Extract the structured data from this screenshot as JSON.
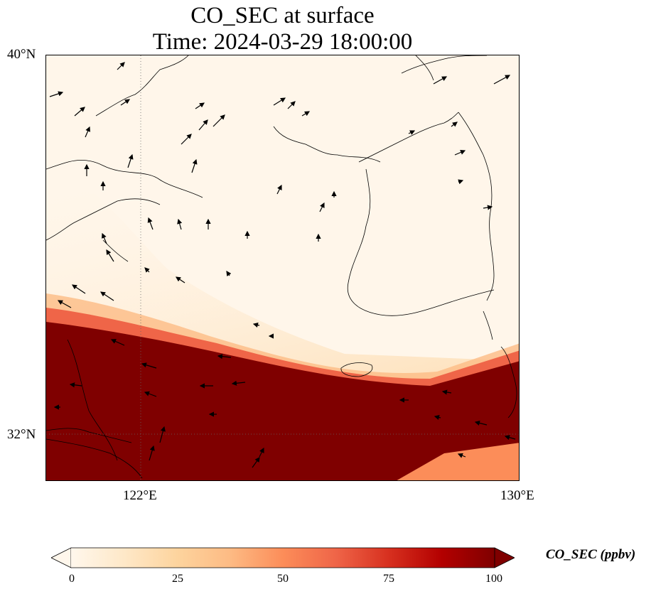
{
  "title": {
    "line1": "CO_SEC at surface",
    "line2": "Time: 2024-03-29 18:00:00"
  },
  "map": {
    "lon_range": [
      120,
      130
    ],
    "lat_range": [
      31,
      40
    ],
    "lat_labels": [
      "40°N",
      "32°N"
    ],
    "lon_labels": [
      "122°E",
      "130°E"
    ],
    "gridlines": {
      "lon": [
        122
      ],
      "lat": [
        32
      ],
      "style": "dotted"
    },
    "field_description_colormap": "OrRd",
    "features": [
      "coastlines",
      "wind-vectors"
    ]
  },
  "colorbar": {
    "label": "CO_SEC (ppbv)",
    "ticks": [
      "0",
      "25",
      "50",
      "75",
      "100"
    ],
    "min": 0,
    "max": 100,
    "extend": "both",
    "colors": [
      "#fff7ec",
      "#fee8c8",
      "#fdd49e",
      "#fdbb84",
      "#fc8d59",
      "#ef6548",
      "#d7301f",
      "#b30000",
      "#7f0000"
    ]
  }
}
